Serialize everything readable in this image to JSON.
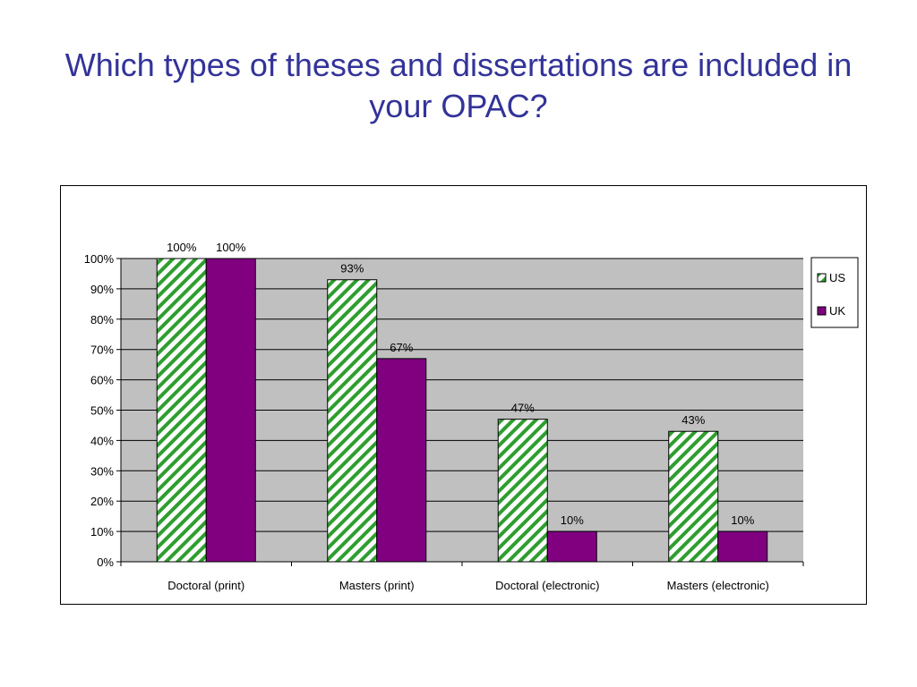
{
  "slide": {
    "title": "Which types of theses and dissertations are included in your OPAC?"
  },
  "chart_data": {
    "type": "bar",
    "title": "",
    "xlabel": "",
    "ylabel": "",
    "categories": [
      "Doctoral (print)",
      "Masters (print)",
      "Doctoral (electronic)",
      "Masters (electronic)"
    ],
    "series": [
      {
        "name": "US",
        "values": [
          100,
          93,
          47,
          43
        ],
        "labels": [
          "100%",
          "93%",
          "47%",
          "43%"
        ],
        "color": "#2e9e2e",
        "fill": "diagonal-hatch"
      },
      {
        "name": "UK",
        "values": [
          100,
          67,
          10,
          10
        ],
        "labels": [
          "100%",
          "67%",
          "10%",
          "10%"
        ],
        "color": "#800080",
        "fill": "solid"
      }
    ],
    "ylim": [
      0,
      100
    ],
    "yticks": [
      "0%",
      "10%",
      "20%",
      "30%",
      "40%",
      "50%",
      "60%",
      "70%",
      "80%",
      "90%",
      "100%"
    ],
    "plot_background": "#c0c0c0",
    "grid": true,
    "legend": "right"
  }
}
